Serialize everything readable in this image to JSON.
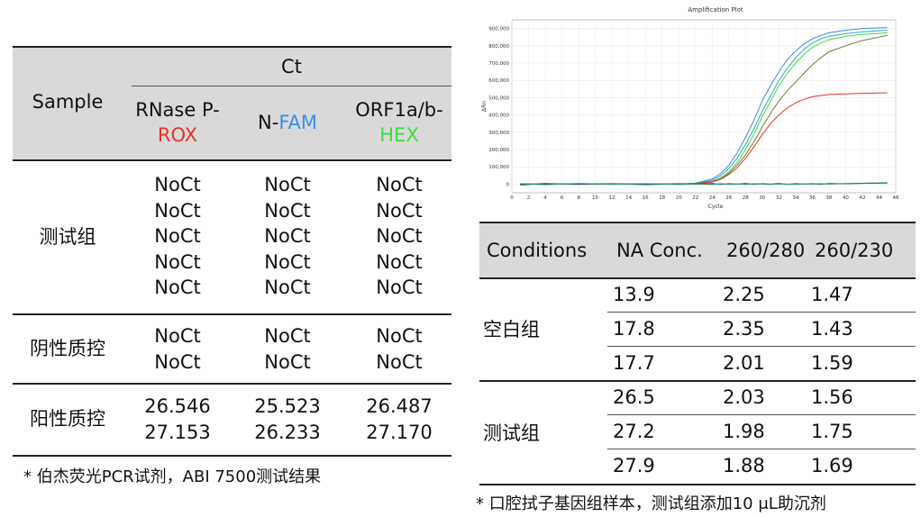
{
  "left_table": {
    "header": {
      "sample": "Sample",
      "ct": "Ct",
      "col1_line1": "RNase P-",
      "col1_line2": "ROX",
      "col2_prefix": "N-",
      "col2_dye": "FAM",
      "col3_line1": "ORF1a/b-",
      "col3_line2": "HEX"
    },
    "groups": [
      {
        "label": "测试组",
        "col1": [
          "NoCt",
          "NoCt",
          "NoCt",
          "NoCt",
          "NoCt"
        ],
        "col2": [
          "NoCt",
          "NoCt",
          "NoCt",
          "NoCt",
          "NoCt"
        ],
        "col3": [
          "NoCt",
          "NoCt",
          "NoCt",
          "NoCt",
          "NoCt"
        ]
      },
      {
        "label": "阴性质控",
        "col1": [
          "NoCt",
          "NoCt"
        ],
        "col2": [
          "NoCt",
          "NoCt"
        ],
        "col3": [
          "NoCt",
          "NoCt"
        ]
      },
      {
        "label": "阳性质控",
        "col1": [
          "26.546",
          "27.153"
        ],
        "col2": [
          "25.523",
          "26.233"
        ],
        "col3": [
          "26.487",
          "27.170"
        ]
      }
    ],
    "footnote": "* 伯杰荧光PCR试剂，ABI 7500测试结果"
  },
  "right_table": {
    "headers": [
      "Conditions",
      "NA Conc.",
      "260/280",
      "260/230"
    ],
    "groups": [
      {
        "label": "空白组",
        "rows": [
          [
            "13.9",
            "2.25",
            "1.47"
          ],
          [
            "17.8",
            "2.35",
            "1.43"
          ],
          [
            "17.7",
            "2.01",
            "1.59"
          ]
        ]
      },
      {
        "label": "测试组",
        "rows": [
          [
            "26.5",
            "2.03",
            "1.56"
          ],
          [
            "27.2",
            "1.98",
            "1.75"
          ],
          [
            "27.9",
            "1.88",
            "1.69"
          ]
        ]
      }
    ],
    "footnote_prefix": "* 口腔拭子基因组样本，测试组添加10 ",
    "footnote_unit": "μL",
    "footnote_suffix": "助沉剂"
  },
  "colors": {
    "rox": "#e8312b",
    "fam": "#3a8ee6",
    "hex": "#3ddc3d",
    "band": "#d9d9d9"
  },
  "chart_data": {
    "type": "line",
    "title": "Amplification Plot",
    "xlabel": "Cycle",
    "ylabel": "ΔRn",
    "xlim": [
      0,
      46
    ],
    "ylim": [
      -50000,
      950000
    ],
    "xticks": [
      0,
      2,
      4,
      6,
      8,
      10,
      12,
      14,
      16,
      18,
      20,
      22,
      24,
      26,
      28,
      30,
      32,
      34,
      36,
      38,
      40,
      42,
      44,
      46
    ],
    "yticks": [
      0,
      100000,
      200000,
      300000,
      400000,
      500000,
      600000,
      700000,
      800000,
      900000
    ],
    "ytick_labels": [
      "0",
      "100,000",
      "200,000",
      "300,000",
      "400,000",
      "500,000",
      "600,000",
      "700,000",
      "800,000",
      "900,000"
    ],
    "grid": true,
    "x": [
      1,
      4,
      8,
      12,
      16,
      20,
      22,
      24,
      25,
      26,
      27,
      28,
      29,
      30,
      31,
      32,
      33,
      34,
      35,
      36,
      37,
      38,
      40,
      42,
      45
    ],
    "series": [
      {
        "color": "#3a8ee6",
        "values": [
          0,
          0,
          0,
          0,
          0,
          0,
          5000,
          30000,
          60000,
          110000,
          180000,
          270000,
          370000,
          480000,
          570000,
          650000,
          720000,
          770000,
          810000,
          840000,
          860000,
          875000,
          890000,
          900000,
          905000
        ]
      },
      {
        "color": "#2aa7c9",
        "values": [
          0,
          0,
          0,
          0,
          0,
          0,
          4000,
          22000,
          48000,
          90000,
          150000,
          230000,
          320000,
          420000,
          510000,
          600000,
          670000,
          730000,
          780000,
          815000,
          840000,
          855000,
          870000,
          880000,
          890000
        ]
      },
      {
        "color": "#3ddc3d",
        "values": [
          0,
          0,
          0,
          0,
          0,
          0,
          3000,
          15000,
          35000,
          70000,
          125000,
          200000,
          290000,
          390000,
          480000,
          570000,
          640000,
          700000,
          750000,
          790000,
          815000,
          835000,
          855000,
          865000,
          875000
        ]
      },
      {
        "color": "#7a7a3a",
        "values": [
          0,
          0,
          0,
          0,
          0,
          0,
          3000,
          15000,
          32000,
          62000,
          110000,
          170000,
          245000,
          330000,
          410000,
          480000,
          540000,
          590000,
          640000,
          690000,
          730000,
          765000,
          800000,
          830000,
          860000
        ]
      },
      {
        "color": "#e8312b",
        "values": [
          0,
          0,
          0,
          0,
          0,
          0,
          2000,
          12000,
          28000,
          55000,
          95000,
          150000,
          215000,
          285000,
          350000,
          400000,
          440000,
          470000,
          490000,
          505000,
          512000,
          518000,
          522000,
          525000,
          528000
        ]
      },
      {
        "color": "#1d3f8a",
        "values": [
          -5000,
          3000,
          -2000,
          2000,
          -3000,
          2000,
          0,
          3000,
          -2000,
          2000,
          0,
          3000,
          -1000,
          2000,
          0,
          3000,
          -1000,
          2000,
          0,
          2000,
          -1000,
          3000,
          2000,
          4000,
          6000
        ]
      },
      {
        "color": "#1e8f6a",
        "values": [
          2000,
          -3000,
          3000,
          -1000,
          2000,
          -2000,
          1000,
          -2000,
          2000,
          -1000,
          1000,
          -2000,
          2000,
          0,
          -2000,
          1000,
          0,
          -1000,
          1000,
          0,
          2000,
          0,
          3000,
          5000,
          8000
        ]
      }
    ]
  }
}
